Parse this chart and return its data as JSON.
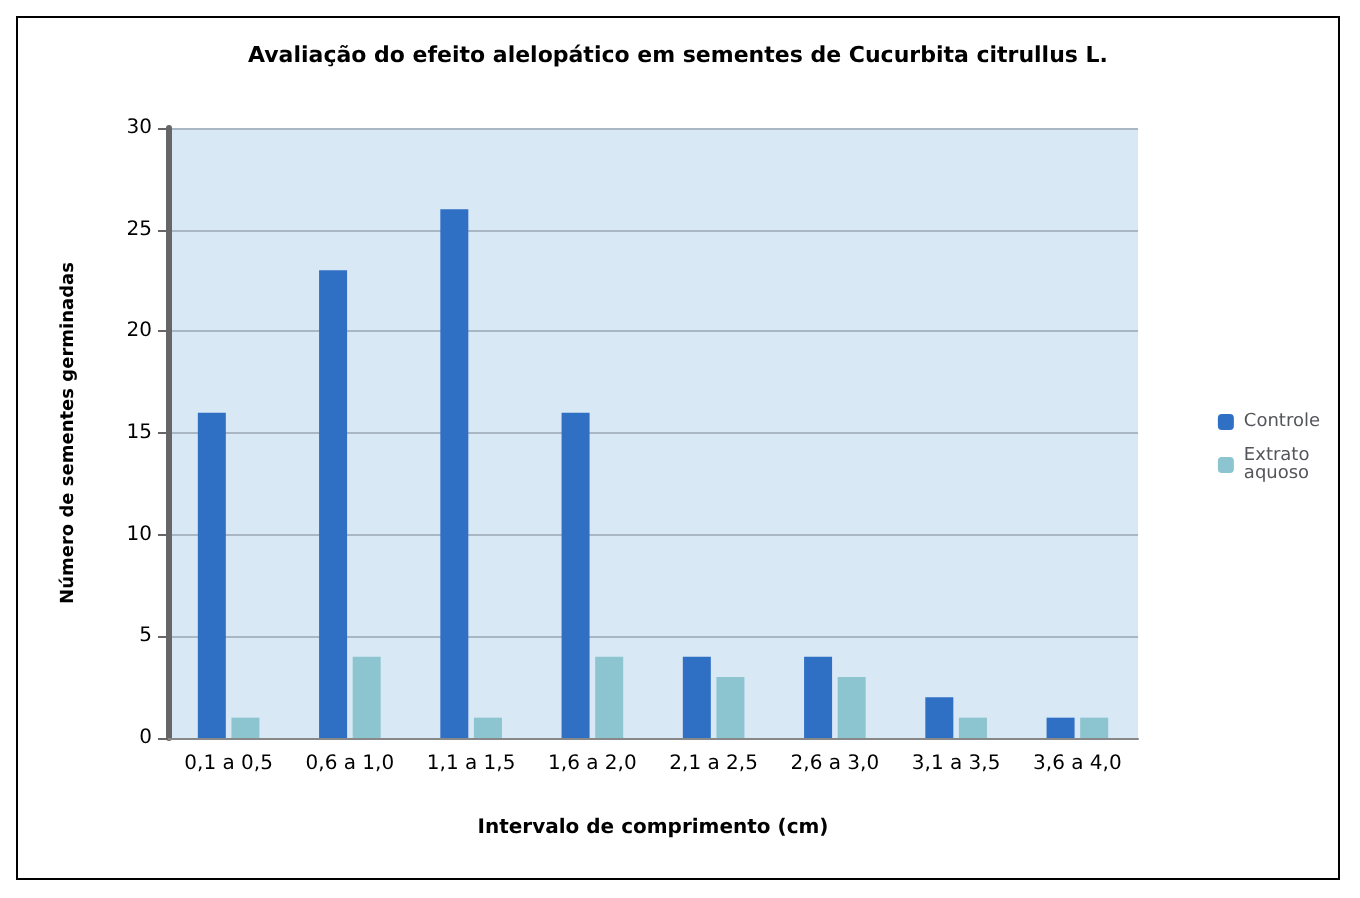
{
  "chart_data": {
    "type": "bar",
    "title": "Avaliação do efeito alelopático em sementes de Cucurbita citrullus L.",
    "xlabel": "Intervalo de comprimento (cm)",
    "ylabel": "Número de sementes germinadas",
    "categories": [
      "0,1 a 0,5",
      "0,6 a 1,0",
      "1,1 a 1,5",
      "1,6 a 2,0",
      "2,1 a 2,5",
      "2,6 a 3,0",
      "3,1 a 3,5",
      "3,6 a 4,0"
    ],
    "series": [
      {
        "name": "Controle",
        "color": "#2f6fc4",
        "values": [
          16,
          23,
          26,
          16,
          4,
          4,
          2,
          1
        ]
      },
      {
        "name": "Extrato aquoso",
        "color": "#8cc4cf",
        "values": [
          1,
          4,
          1,
          4,
          3,
          3,
          1,
          1
        ]
      }
    ],
    "ylim": [
      0,
      30
    ],
    "yticks": [
      0,
      5,
      10,
      15,
      20,
      25,
      30
    ],
    "grid": "y",
    "legend": "right"
  }
}
